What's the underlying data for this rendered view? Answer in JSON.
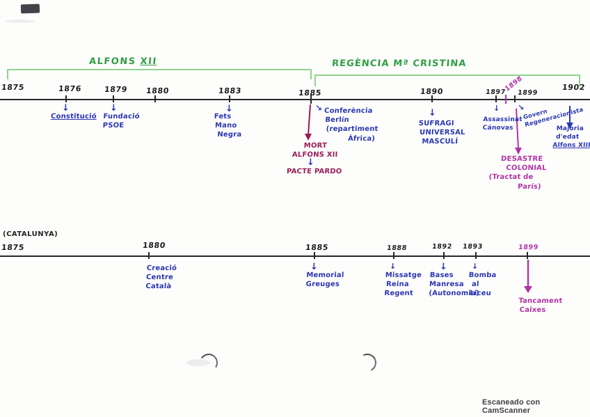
{
  "colors": {
    "bracket_green": "#8fd38f",
    "label_green": "#2f9e41",
    "ink_black": "#26262a",
    "annotation_blue": "#2a36b4",
    "crimson": "#9a1b55",
    "magenta": "#b233a6"
  },
  "scan": {
    "credit": "Escaneado con CamScanner"
  },
  "timeline1": {
    "periods": [
      {
        "name": "ALFONS",
        "numeral": "XII"
      },
      {
        "name": "REGÈNCIA Mª CRISTINA"
      }
    ],
    "years": [
      "1875",
      "1876",
      "1879",
      "1880",
      "1883",
      "1885",
      "1890",
      "1897",
      "1898",
      "1899",
      "1902"
    ],
    "events": {
      "constitucio": {
        "year": "1876",
        "lines": [
          "Constitució"
        ]
      },
      "fundacio": {
        "year": "1879",
        "lines": [
          "Fundació",
          "PSOE"
        ]
      },
      "fets": {
        "year": "1883",
        "lines": [
          "Fets",
          "Mano",
          "Negra"
        ]
      },
      "conferencia": {
        "year": "1885",
        "lines": [
          "Conferència",
          "Berlín",
          "(repartiment",
          "Àfrica)"
        ]
      },
      "mort": {
        "year": "1885",
        "lines": [
          "MORT",
          "ALFONS XII"
        ]
      },
      "pacte": {
        "year": "1885",
        "lines": [
          "PACTE PARDO"
        ]
      },
      "sufragi": {
        "year": "1890",
        "lines": [
          "SUFRAGI",
          "UNIVERSAL",
          "MASCULÍ"
        ]
      },
      "assassinat": {
        "year": "1897",
        "lines": [
          "Assassinat",
          "Cánovas"
        ]
      },
      "desastre": {
        "year": "1898",
        "lines": [
          "DESASTRE",
          "COLONIAL",
          "(Tractat de",
          "París)"
        ]
      },
      "govern": {
        "year": "1899",
        "lines": [
          "Govern",
          "Regeneracionista"
        ]
      },
      "majoria": {
        "year": "1902",
        "lines": [
          "Majoria",
          "d'edat",
          "Alfons XIII"
        ]
      }
    }
  },
  "timeline2": {
    "region": "(CATALUNYA)",
    "years": [
      "1875",
      "1880",
      "1885",
      "1888",
      "1892",
      "1893",
      "1899"
    ],
    "events": {
      "creacio": {
        "year": "1880",
        "lines": [
          "Creació",
          "Centre",
          "Català"
        ]
      },
      "memorial": {
        "year": "1885",
        "lines": [
          "Memorial",
          "Greuges"
        ]
      },
      "missatge": {
        "year": "1888",
        "lines": [
          "Missatge",
          "Reina",
          "Regent"
        ]
      },
      "bases": {
        "year": "1892",
        "lines": [
          "Bases",
          "Manresa",
          "(Autonomia)"
        ]
      },
      "bomba": {
        "year": "1893",
        "lines": [
          "Bomba",
          "al",
          "Liceu"
        ]
      },
      "tancament": {
        "year": "1899",
        "lines": [
          "Tancament",
          "Caixes"
        ]
      }
    }
  }
}
